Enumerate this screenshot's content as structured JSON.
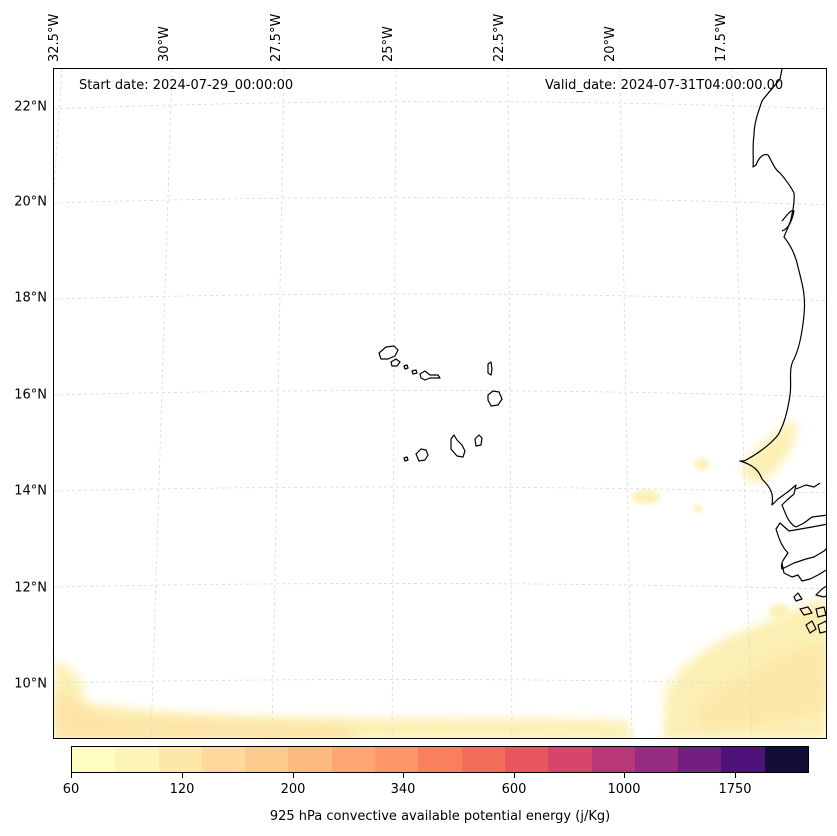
{
  "map": {
    "region": "Eastern tropical Atlantic / Cape Verde / West African coast",
    "start_date": "Start date: 2024-07-29_00:00:00",
    "valid_date": "Valid_date: 2024-07-31T04:00:00.00",
    "lat_labels": [
      "22°N",
      "20°N",
      "18°N",
      "16°N",
      "14°N",
      "12°N",
      "10°N"
    ],
    "lon_labels": [
      "32.5°W",
      "30°W",
      "27.5°W",
      "25°W",
      "22.5°W",
      "20°W",
      "17.5°W"
    ],
    "gridlines": true,
    "coastline_color": "#000000",
    "gridline_color": "#d9d9d9"
  },
  "colorbar": {
    "title": "925 hPa convective available potential energy (j/Kg)",
    "tick_labels": [
      "60",
      "120",
      "200",
      "340",
      "600",
      "1000",
      "1750"
    ],
    "colors": [
      "#fcfdbf",
      "#fcf5b5",
      "#fde8a8",
      "#fed99b",
      "#fec98d",
      "#febb81",
      "#fea775",
      "#fd9668",
      "#f9805d",
      "#f36e5a",
      "#e8575d",
      "#d6456c",
      "#b73779",
      "#952c80",
      "#721f81",
      "#4f127b",
      "#140e36"
    ]
  }
}
